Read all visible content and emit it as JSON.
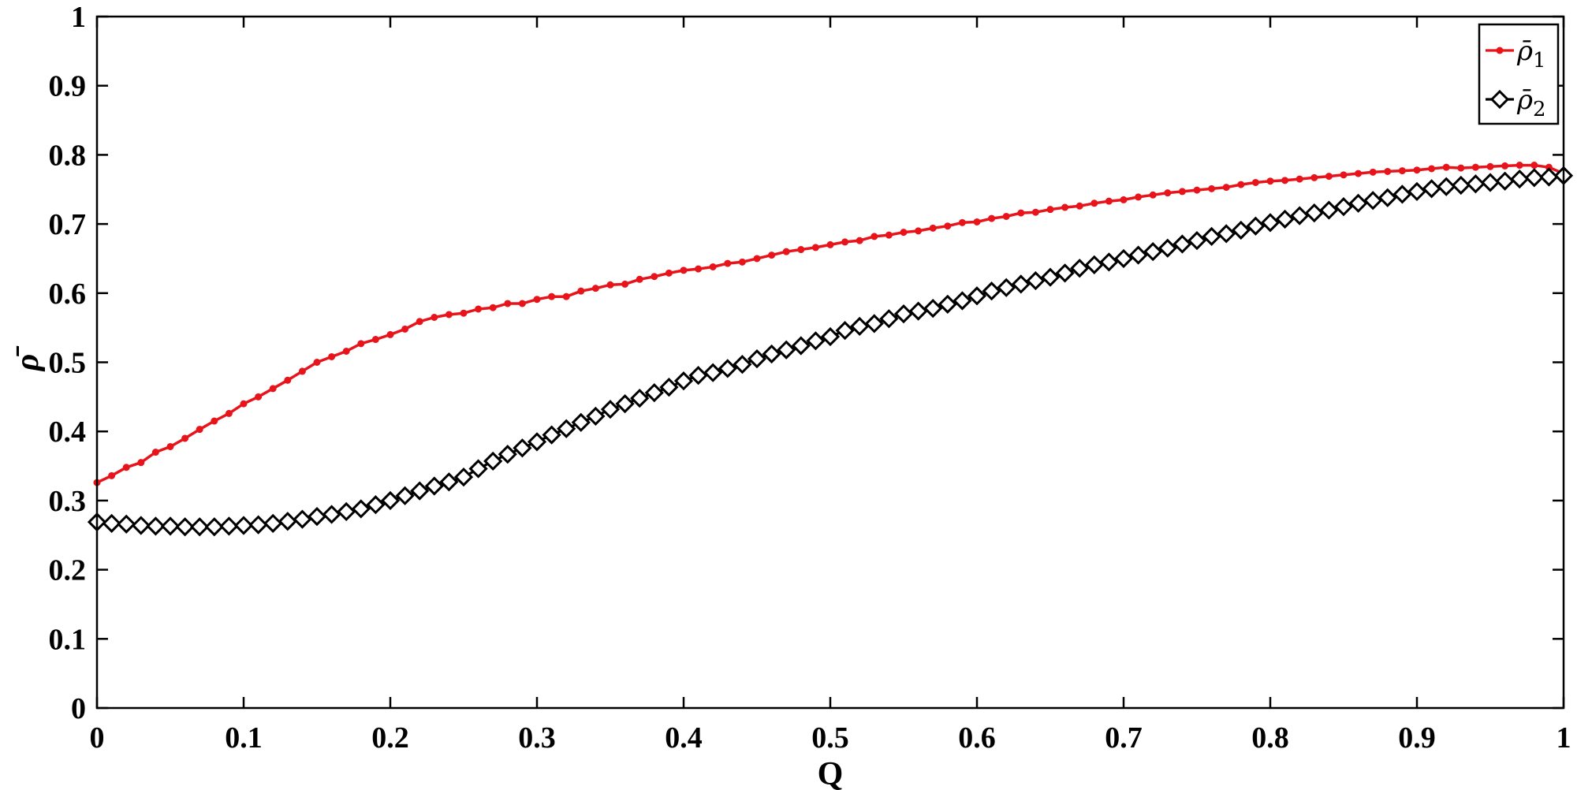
{
  "chart_data": {
    "type": "line",
    "xlabel": "Q",
    "ylabel": "ρ̄",
    "xlim": [
      0,
      1
    ],
    "ylim": [
      0,
      1
    ],
    "xticks": [
      "0",
      "0.1",
      "0.2",
      "0.3",
      "0.4",
      "0.5",
      "0.6",
      "0.7",
      "0.8",
      "0.9",
      "1"
    ],
    "yticks": [
      "0",
      "0.1",
      "0.2",
      "0.3",
      "0.4",
      "0.5",
      "0.6",
      "0.7",
      "0.8",
      "0.9",
      "1"
    ],
    "grid": false,
    "legend_position": "top-right",
    "x": [
      0,
      0.01,
      0.02,
      0.03,
      0.04,
      0.05,
      0.06,
      0.07,
      0.08,
      0.09,
      0.1,
      0.11,
      0.12,
      0.13,
      0.14,
      0.15,
      0.16,
      0.17,
      0.18,
      0.19,
      0.2,
      0.21,
      0.22,
      0.23,
      0.24,
      0.25,
      0.26,
      0.27,
      0.28,
      0.29,
      0.3,
      0.31,
      0.32,
      0.33,
      0.34,
      0.35,
      0.36,
      0.37,
      0.38,
      0.39,
      0.4,
      0.41,
      0.42,
      0.43,
      0.44,
      0.45,
      0.46,
      0.47,
      0.48,
      0.49,
      0.5,
      0.51,
      0.52,
      0.53,
      0.54,
      0.55,
      0.56,
      0.57,
      0.58,
      0.59,
      0.6,
      0.61,
      0.62,
      0.63,
      0.64,
      0.65,
      0.66,
      0.67,
      0.68,
      0.69,
      0.7,
      0.71,
      0.72,
      0.73,
      0.74,
      0.75,
      0.76,
      0.77,
      0.78,
      0.79,
      0.8,
      0.81,
      0.82,
      0.83,
      0.84,
      0.85,
      0.86,
      0.87,
      0.88,
      0.89,
      0.9,
      0.91,
      0.92,
      0.93,
      0.94,
      0.95,
      0.96,
      0.97,
      0.98,
      0.99,
      1.0
    ],
    "series": [
      {
        "name": "ρ̄₁",
        "legend_main": "ρ̄",
        "legend_sub": "1",
        "color": "#e8141b",
        "marker": "dot",
        "values": [
          0.326,
          0.336,
          0.348,
          0.355,
          0.37,
          0.378,
          0.39,
          0.403,
          0.415,
          0.426,
          0.44,
          0.45,
          0.462,
          0.474,
          0.487,
          0.5,
          0.508,
          0.516,
          0.527,
          0.533,
          0.54,
          0.548,
          0.559,
          0.565,
          0.569,
          0.571,
          0.577,
          0.579,
          0.585,
          0.585,
          0.591,
          0.595,
          0.595,
          0.603,
          0.607,
          0.612,
          0.613,
          0.62,
          0.624,
          0.629,
          0.633,
          0.635,
          0.638,
          0.643,
          0.645,
          0.65,
          0.655,
          0.66,
          0.663,
          0.666,
          0.67,
          0.674,
          0.676,
          0.682,
          0.684,
          0.688,
          0.69,
          0.694,
          0.697,
          0.702,
          0.703,
          0.708,
          0.711,
          0.716,
          0.717,
          0.721,
          0.724,
          0.726,
          0.73,
          0.733,
          0.735,
          0.739,
          0.742,
          0.745,
          0.747,
          0.749,
          0.751,
          0.753,
          0.757,
          0.76,
          0.762,
          0.763,
          0.765,
          0.767,
          0.769,
          0.771,
          0.773,
          0.775,
          0.776,
          0.777,
          0.778,
          0.78,
          0.782,
          0.781,
          0.782,
          0.783,
          0.784,
          0.785,
          0.785,
          0.782,
          0.773
        ]
      },
      {
        "name": "ρ̄₂",
        "legend_main": "ρ̄",
        "legend_sub": "2",
        "color": "#000000",
        "marker": "diamond",
        "values": [
          0.269,
          0.267,
          0.266,
          0.264,
          0.263,
          0.263,
          0.262,
          0.262,
          0.262,
          0.263,
          0.264,
          0.265,
          0.267,
          0.27,
          0.273,
          0.277,
          0.28,
          0.284,
          0.288,
          0.294,
          0.3,
          0.307,
          0.314,
          0.321,
          0.327,
          0.334,
          0.346,
          0.357,
          0.367,
          0.376,
          0.385,
          0.395,
          0.404,
          0.413,
          0.422,
          0.432,
          0.44,
          0.448,
          0.456,
          0.464,
          0.473,
          0.481,
          0.485,
          0.491,
          0.497,
          0.505,
          0.512,
          0.518,
          0.524,
          0.531,
          0.537,
          0.546,
          0.552,
          0.556,
          0.563,
          0.57,
          0.574,
          0.578,
          0.584,
          0.589,
          0.596,
          0.603,
          0.608,
          0.613,
          0.618,
          0.623,
          0.629,
          0.636,
          0.641,
          0.645,
          0.65,
          0.655,
          0.66,
          0.665,
          0.671,
          0.676,
          0.682,
          0.686,
          0.691,
          0.697,
          0.702,
          0.707,
          0.712,
          0.716,
          0.72,
          0.725,
          0.73,
          0.734,
          0.738,
          0.743,
          0.747,
          0.751,
          0.754,
          0.756,
          0.758,
          0.76,
          0.762,
          0.765,
          0.767,
          0.768,
          0.77
        ]
      }
    ]
  }
}
